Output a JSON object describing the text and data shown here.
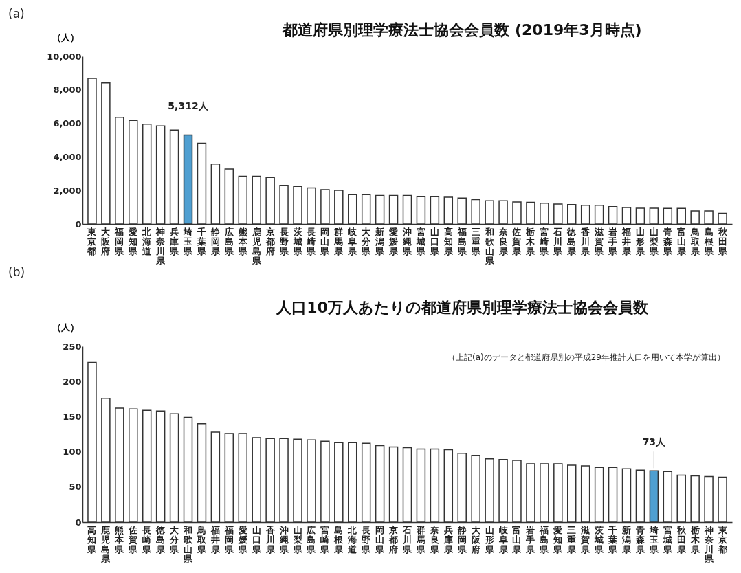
{
  "chart_data": [
    {
      "type": "bar",
      "title": "都道府県別理学療法士協会会員数 (2019年3月時点)",
      "ylabel": "（人）",
      "categories": [
        "東京都",
        "大阪府",
        "福岡県",
        "愛知県",
        "北海道",
        "神奈川県",
        "兵庫県",
        "埼玉県",
        "千葉県",
        "静岡県",
        "広島県",
        "熊本県",
        "鹿児島県",
        "京都府",
        "長野県",
        "茨城県",
        "長崎県",
        "岡山県",
        "群馬県",
        "岐阜県",
        "大分県",
        "新潟県",
        "愛媛県",
        "沖縄県",
        "宮城県",
        "山口県",
        "高知県",
        "福島県",
        "三重県",
        "和歌山県",
        "奈良県",
        "佐賀県",
        "栃木県",
        "宮崎県",
        "石川県",
        "徳島県",
        "香川県",
        "滋賀県",
        "岩手県",
        "福井県",
        "山形県",
        "山梨県",
        "青森県",
        "富山県",
        "鳥取県",
        "島根県",
        "秋田県"
      ],
      "values": [
        8690,
        8410,
        6360,
        6180,
        5950,
        5850,
        5600,
        5312,
        4820,
        3580,
        3280,
        2850,
        2850,
        2780,
        2310,
        2240,
        2150,
        2050,
        2010,
        1750,
        1750,
        1700,
        1700,
        1700,
        1630,
        1630,
        1600,
        1550,
        1460,
        1380,
        1380,
        1310,
        1290,
        1240,
        1190,
        1160,
        1120,
        1120,
        1030,
        980,
        940,
        940,
        930,
        930,
        780,
        780,
        640
      ],
      "colors": [
        "#ffffff",
        "#ffffff",
        "#ffffff",
        "#ffffff",
        "#ffffff",
        "#ffffff",
        "#ffffff",
        "#4f9fd1",
        "#ffffff",
        "#ffffff",
        "#ffffff",
        "#ffffff",
        "#ffffff",
        "#ffffff",
        "#ffffff",
        "#ffffff",
        "#ffffff",
        "#ffffff",
        "#ffffff",
        "#ffffff",
        "#ffffff",
        "#ffffff",
        "#ffffff",
        "#ffffff",
        "#ffffff",
        "#ffffff",
        "#ffffff",
        "#ffffff",
        "#ffffff",
        "#ffffff",
        "#ffffff",
        "#ffffff",
        "#ffffff",
        "#ffffff",
        "#ffffff",
        "#ffffff",
        "#ffffff",
        "#ffffff",
        "#ffffff",
        "#ffffff",
        "#ffffff",
        "#ffffff",
        "#ffffff",
        "#ffffff",
        "#ffffff",
        "#ffffff",
        "#ffffff"
      ],
      "ylim": [
        0,
        10000
      ],
      "yticks": [
        0,
        {
          "value": 2000,
          "label": "2,000"
        },
        {
          "value": 4000,
          "label": "4,000"
        },
        {
          "value": 6000,
          "label": "6,000"
        },
        {
          "value": 8000,
          "label": "8,000"
        },
        {
          "value": 10000,
          "label": "10,000"
        }
      ],
      "annotations": [
        "(a)",
        {
          "text": "5,312人",
          "x": "埼玉県",
          "y": 5312
        }
      ]
    },
    {
      "type": "bar",
      "title": "人口10万人あたりの都道府県別理学療法士協会会員数",
      "ylabel": "（人）",
      "categories": [
        "高知県",
        "鹿児島県",
        "熊本県",
        "佐賀県",
        "長崎県",
        "徳島県",
        "大分県",
        "和歌山県",
        "鳥取県",
        "福井県",
        "福岡県",
        "愛媛県",
        "山口県",
        "香川県",
        "沖縄県",
        "山梨県",
        "広島県",
        "宮崎県",
        "島根県",
        "北海道",
        "長野県",
        "岡山県",
        "京都府",
        "石川県",
        "群馬県",
        "奈良県",
        "兵庫県",
        "静岡県",
        "大阪府",
        "山形県",
        "岐阜県",
        "富山県",
        "岩手県",
        "福島県",
        "愛知県",
        "三重県",
        "滋賀県",
        "茨城県",
        "千葉県",
        "新潟県",
        "青森県",
        "埼玉県",
        "宮城県",
        "秋田県",
        "栃木県",
        "神奈川県",
        "東京都"
      ],
      "values": [
        227,
        176,
        162,
        161,
        159,
        158,
        154,
        149,
        140,
        128,
        126,
        126,
        120,
        119,
        119,
        118,
        117,
        115,
        113,
        113,
        112,
        109,
        107,
        106,
        104,
        104,
        103,
        98,
        95,
        90,
        89,
        88,
        83,
        83,
        83,
        81,
        80,
        78,
        78,
        76,
        74,
        73,
        72,
        67,
        66,
        65,
        64
      ],
      "colors": [
        "#ffffff",
        "#ffffff",
        "#ffffff",
        "#ffffff",
        "#ffffff",
        "#ffffff",
        "#ffffff",
        "#ffffff",
        "#ffffff",
        "#ffffff",
        "#ffffff",
        "#ffffff",
        "#ffffff",
        "#ffffff",
        "#ffffff",
        "#ffffff",
        "#ffffff",
        "#ffffff",
        "#ffffff",
        "#ffffff",
        "#ffffff",
        "#ffffff",
        "#ffffff",
        "#ffffff",
        "#ffffff",
        "#ffffff",
        "#ffffff",
        "#ffffff",
        "#ffffff",
        "#ffffff",
        "#ffffff",
        "#ffffff",
        "#ffffff",
        "#ffffff",
        "#ffffff",
        "#ffffff",
        "#ffffff",
        "#ffffff",
        "#ffffff",
        "#ffffff",
        "#ffffff",
        "#4f9fd1",
        "#ffffff",
        "#ffffff",
        "#ffffff",
        "#ffffff",
        "#ffffff"
      ],
      "ylim": [
        0,
        250
      ],
      "yticks": [
        0,
        50,
        100,
        150,
        200,
        250
      ],
      "annotations": [
        "(b)",
        "（上記(a)のデータと都道府県別の平成29年推計人口を用いて本学が算出）",
        {
          "text": "73人",
          "x": "埼玉県",
          "y": 73
        }
      ]
    }
  ]
}
